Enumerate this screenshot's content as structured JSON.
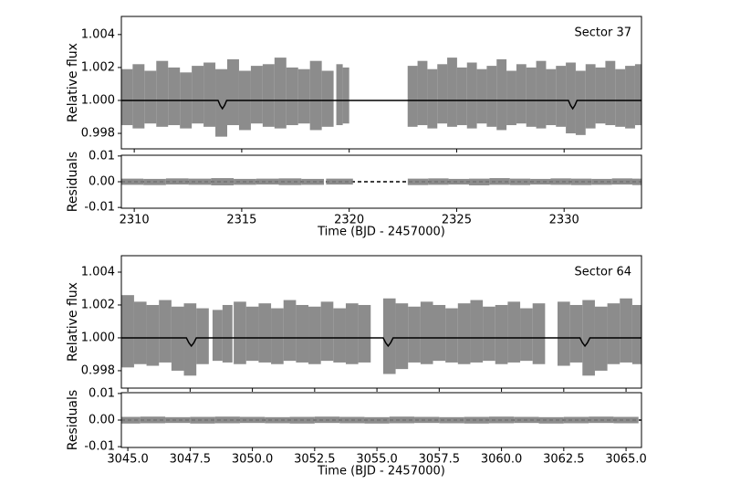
{
  "chart_data": [
    {
      "type": "line",
      "ylabel": "Relative flux",
      "annotation": "Sector 37",
      "xlim": [
        2309.4,
        2333.6
      ],
      "ylim": [
        0.99706,
        1.0051
      ],
      "yticks": [
        0.998,
        {
          "value": 1.0,
          "label": "1.000"
        },
        1.002,
        1.004
      ],
      "series": [
        {
          "color": "#7f7f7f",
          "x": [
            2309.65,
            2310.2,
            2310.75,
            2311.3,
            2311.85,
            2312.4,
            2312.95,
            2313.5,
            2314.05,
            2314.6,
            2315.15,
            2315.7,
            2316.25,
            2316.8,
            2317.35,
            2317.9,
            2318.45,
            2319.0,
            2319.55,
            2319.85,
            2322.95,
            2323.41,
            2323.87,
            2324.33,
            2324.79,
            2325.25,
            2325.71,
            2326.17,
            2326.63,
            2327.09,
            2327.55,
            2328.01,
            2328.47,
            2328.93,
            2329.39,
            2329.85,
            2330.31,
            2330.77,
            2331.23,
            2331.69,
            2332.15,
            2332.61,
            2333.07,
            2333.53
          ],
          "low": [
            0.9985,
            0.9983,
            0.9986,
            0.9984,
            0.9985,
            0.9983,
            0.9986,
            0.9984,
            0.9978,
            0.9985,
            0.9982,
            0.9986,
            0.9984,
            0.9983,
            0.9985,
            0.9986,
            0.9982,
            0.9984,
            0.9985,
            0.9986,
            0.9984,
            0.9985,
            0.9983,
            0.9986,
            0.9984,
            0.9985,
            0.9983,
            0.9986,
            0.9984,
            0.9982,
            0.9985,
            0.9986,
            0.9984,
            0.9983,
            0.9985,
            0.9984,
            0.998,
            0.9979,
            0.9983,
            0.9986,
            0.9985,
            0.9984,
            0.9983,
            0.9985
          ],
          "high": [
            1.0019,
            1.0022,
            1.0018,
            1.0024,
            1.002,
            1.0017,
            1.0021,
            1.0023,
            1.0019,
            1.0025,
            1.0018,
            1.0021,
            1.0022,
            1.0026,
            1.002,
            1.0019,
            1.0024,
            1.0018,
            1.0022,
            1.002,
            1.0021,
            1.0024,
            1.0019,
            1.0022,
            1.0026,
            1.002,
            1.0023,
            1.0019,
            1.0021,
            1.0025,
            1.0018,
            1.0022,
            1.002,
            1.0024,
            1.0019,
            1.0021,
            1.0023,
            1.0018,
            1.0022,
            1.002,
            1.0024,
            1.0019,
            1.0021,
            1.0022
          ]
        },
        {
          "color": "#000000",
          "x": [
            2309.4,
            2313.9,
            2314.0,
            2314.1,
            2314.2,
            2314.3,
            2330.2,
            2330.3,
            2330.4,
            2330.5,
            2330.6,
            2333.6
          ],
          "values": [
            1.0,
            1.0,
            0.9997,
            0.9995,
            0.9997,
            1.0,
            1.0,
            0.9997,
            0.9995,
            0.9997,
            1.0,
            1.0
          ]
        }
      ]
    },
    {
      "type": "line",
      "ylabel": "Residuals",
      "xlabel": "Time (BJD - 2457000)",
      "xlim": [
        2309.4,
        2333.6
      ],
      "ylim": [
        -0.0103,
        0.0103
      ],
      "xticks": [
        2310,
        2315,
        2320,
        2325,
        2330
      ],
      "yticks": [
        -0.01,
        {
          "value": 0,
          "label": "0.00"
        },
        0.01
      ],
      "series": [
        {
          "color": "#000000",
          "style": "dashed",
          "x": [
            2309.4,
            2333.6
          ],
          "values": [
            0,
            0
          ]
        },
        {
          "color": "#7f7f7f",
          "x": [
            2309.9,
            2310.95,
            2312.0,
            2313.05,
            2314.1,
            2315.15,
            2316.2,
            2317.25,
            2318.3,
            2319.55,
            2323.2,
            2324.15,
            2325.1,
            2326.05,
            2327.0,
            2327.95,
            2328.9,
            2329.85,
            2330.8,
            2331.75,
            2332.7,
            2333.65
          ],
          "low": [
            -0.0012,
            -0.0013,
            -0.0011,
            -0.0012,
            -0.0014,
            -0.0012,
            -0.0011,
            -0.0013,
            -0.0012,
            -0.0011,
            -0.0013,
            -0.0012,
            -0.0011,
            -0.0014,
            -0.0012,
            -0.0013,
            -0.0011,
            -0.0012,
            -0.0013,
            -0.0012,
            -0.0011,
            -0.0013
          ],
          "high": [
            0.0012,
            0.0011,
            0.0013,
            0.0012,
            0.0014,
            0.0011,
            0.0012,
            0.0013,
            0.0011,
            0.0012,
            0.0012,
            0.0013,
            0.0011,
            0.0012,
            0.0014,
            0.0012,
            0.0011,
            0.0013,
            0.0012,
            0.0011,
            0.0013,
            0.0012
          ]
        }
      ]
    },
    {
      "type": "line",
      "ylabel": "Relative flux",
      "annotation": "Sector 64",
      "xlim": [
        3044.74,
        3065.62
      ],
      "ylim": [
        0.99694,
        1.005
      ],
      "yticks": [
        0.998,
        {
          "value": 1.0,
          "label": "1.000"
        },
        1.002,
        1.004
      ],
      "series": [
        {
          "color": "#7f7f7f",
          "x": [
            3045.0,
            3045.5,
            3046.0,
            3046.5,
            3047.0,
            3047.5,
            3048.0,
            3048.6,
            3049.0,
            3049.5,
            3050.0,
            3050.5,
            3051.0,
            3051.5,
            3052.0,
            3052.5,
            3053.0,
            3053.5,
            3054.0,
            3054.5,
            3055.5,
            3056.0,
            3056.5,
            3057.0,
            3057.5,
            3058.0,
            3058.5,
            3059.0,
            3059.5,
            3060.0,
            3060.5,
            3061.0,
            3061.5,
            3062.5,
            3063.0,
            3063.5,
            3064.0,
            3064.5,
            3065.0,
            3065.5
          ],
          "low": [
            0.9982,
            0.9984,
            0.9983,
            0.9985,
            0.998,
            0.9977,
            0.9984,
            0.9986,
            0.9985,
            0.9984,
            0.9986,
            0.9985,
            0.9984,
            0.9986,
            0.9985,
            0.9984,
            0.9986,
            0.9985,
            0.9984,
            0.9985,
            0.9978,
            0.9981,
            0.9985,
            0.9984,
            0.9986,
            0.9985,
            0.9984,
            0.9985,
            0.9986,
            0.9984,
            0.9985,
            0.9986,
            0.9984,
            0.9983,
            0.9985,
            0.9977,
            0.998,
            0.9984,
            0.9985,
            0.9984
          ],
          "high": [
            1.0026,
            1.0022,
            1.002,
            1.0023,
            1.0019,
            1.0021,
            1.0018,
            1.0017,
            1.002,
            1.0022,
            1.0019,
            1.0021,
            1.0018,
            1.0023,
            1.002,
            1.0019,
            1.0022,
            1.0018,
            1.0021,
            1.002,
            1.0024,
            1.0021,
            1.0019,
            1.0022,
            1.002,
            1.0018,
            1.0021,
            1.0023,
            1.0019,
            1.002,
            1.0022,
            1.0018,
            1.0021,
            1.0022,
            1.002,
            1.0023,
            1.0019,
            1.0021,
            1.0024,
            1.002
          ]
        },
        {
          "color": "#000000",
          "x": [
            3044.74,
            3047.35,
            3047.45,
            3047.55,
            3047.65,
            3047.75,
            3055.25,
            3055.35,
            3055.45,
            3055.55,
            3055.65,
            3063.15,
            3063.25,
            3063.35,
            3063.45,
            3063.55,
            3065.62
          ],
          "values": [
            1.0,
            1.0,
            0.9997,
            0.9995,
            0.9997,
            1.0,
            1.0,
            0.9997,
            0.9995,
            0.9997,
            1.0,
            1.0,
            0.9997,
            0.9995,
            0.9997,
            1.0,
            1.0
          ]
        }
      ]
    },
    {
      "type": "line",
      "ylabel": "Residuals",
      "xlabel": "Time (BJD - 2457000)",
      "xlim": [
        3044.74,
        3065.62
      ],
      "ylim": [
        -0.0103,
        0.0103
      ],
      "xticks": [
        {
          "value": 3045,
          "label": "3045.0"
        },
        3047.5,
        {
          "value": 3050,
          "label": "3050.0"
        },
        3052.5,
        {
          "value": 3055,
          "label": "3055.0"
        },
        3057.5,
        {
          "value": 3060,
          "label": "3060.0"
        },
        3062.5,
        {
          "value": 3065,
          "label": "3065.0"
        }
      ],
      "yticks": [
        -0.01,
        {
          "value": 0,
          "label": "0.00"
        },
        0.01
      ],
      "series": [
        {
          "color": "#000000",
          "style": "dashed",
          "x": [
            3044.74,
            3065.62
          ],
          "values": [
            0,
            0
          ]
        },
        {
          "color": "#7f7f7f",
          "x": [
            3045,
            3046,
            3047,
            3048,
            3049,
            3050,
            3051,
            3052,
            3053,
            3054,
            3055,
            3056,
            3057,
            3058,
            3059,
            3060,
            3061,
            3062,
            3063,
            3064,
            3065
          ],
          "low": [
            -0.0013,
            -0.0012,
            -0.0011,
            -0.0013,
            -0.0012,
            -0.0011,
            -0.0012,
            -0.0013,
            -0.0011,
            -0.0012,
            -0.0013,
            -0.0012,
            -0.0011,
            -0.0012,
            -0.0013,
            -0.0012,
            -0.0011,
            -0.0013,
            -0.0012,
            -0.0011,
            -0.0012
          ],
          "high": [
            0.0012,
            0.0013,
            0.0011,
            0.0012,
            0.0013,
            0.0012,
            0.0011,
            0.0012,
            0.0013,
            0.0012,
            0.0011,
            0.0013,
            0.0012,
            0.0011,
            0.0012,
            0.0013,
            0.0012,
            0.0011,
            0.0012,
            0.0013,
            0.0012
          ]
        }
      ]
    }
  ]
}
